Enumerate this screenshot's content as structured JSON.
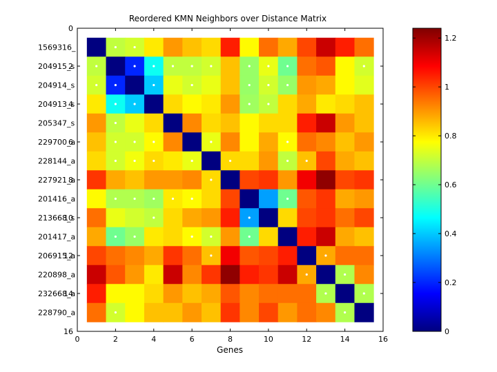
{
  "chart_data": {
    "type": "heatmap",
    "title": "Reordered KMN Neighbors over Distance Matrix",
    "xlabel": "Genes",
    "ylabel": "",
    "xlim": [
      0,
      16
    ],
    "ylim": [
      0,
      16
    ],
    "x_ticks": [
      0,
      2,
      4,
      6,
      8,
      10,
      12,
      14,
      16
    ],
    "y_ticks": [
      0,
      2,
      4,
      6,
      8,
      10,
      12,
      14,
      16
    ],
    "row_labels": [
      "1569316_",
      "204915_s",
      "204914_s",
      "204913_s",
      "205347_s",
      "229700_a",
      "228144_a",
      "227921_a",
      "201416_a",
      "213668_s",
      "201417_a",
      "206915_a",
      "220898_a",
      "232668_a",
      "228790_a"
    ],
    "colorbar": {
      "min": 0,
      "max": 1.24,
      "ticks": [
        0,
        0.2,
        0.4,
        0.6,
        0.8,
        1,
        1.2
      ],
      "colormap": "jet"
    },
    "values": [
      [
        0.0,
        0.7,
        0.72,
        0.8,
        0.9,
        0.85,
        0.82,
        1.05,
        0.78,
        0.95,
        0.88,
        1.0,
        1.15,
        1.05,
        0.95
      ],
      [
        0.7,
        0.0,
        0.2,
        0.48,
        0.7,
        0.7,
        0.72,
        0.85,
        0.65,
        0.75,
        0.6,
        0.95,
        0.98,
        0.78,
        0.72
      ],
      [
        0.72,
        0.2,
        0.0,
        0.4,
        0.75,
        0.72,
        0.75,
        0.85,
        0.65,
        0.72,
        0.65,
        0.9,
        0.88,
        0.78,
        0.74
      ],
      [
        0.8,
        0.48,
        0.4,
        0.0,
        0.82,
        0.78,
        0.8,
        0.9,
        0.66,
        0.7,
        0.82,
        0.88,
        0.8,
        0.82,
        0.85
      ],
      [
        0.9,
        0.7,
        0.75,
        0.82,
        0.0,
        0.92,
        0.82,
        0.85,
        0.78,
        0.82,
        0.82,
        1.05,
        1.15,
        0.9,
        0.85
      ],
      [
        0.85,
        0.72,
        0.72,
        0.78,
        0.92,
        0.0,
        0.75,
        0.92,
        0.78,
        0.88,
        0.78,
        0.95,
        0.92,
        0.85,
        0.9
      ],
      [
        0.82,
        0.72,
        0.76,
        0.82,
        0.8,
        0.75,
        0.0,
        0.82,
        0.82,
        0.9,
        0.7,
        0.85,
        1.0,
        0.88,
        0.85
      ],
      [
        1.02,
        0.88,
        0.85,
        0.9,
        0.9,
        0.92,
        0.82,
        0.0,
        1.0,
        1.02,
        0.9,
        1.1,
        1.22,
        1.0,
        1.02
      ],
      [
        0.78,
        0.68,
        0.68,
        0.66,
        0.8,
        0.78,
        0.82,
        1.0,
        0.0,
        0.35,
        0.6,
        0.98,
        1.02,
        0.88,
        0.9
      ],
      [
        0.95,
        0.75,
        0.72,
        0.7,
        0.82,
        0.88,
        0.9,
        1.05,
        0.35,
        0.0,
        0.82,
        1.0,
        1.02,
        0.95,
        1.0
      ],
      [
        0.88,
        0.6,
        0.65,
        0.8,
        0.82,
        0.78,
        0.72,
        0.9,
        0.6,
        0.82,
        0.0,
        1.05,
        1.15,
        0.88,
        0.85
      ],
      [
        1.0,
        0.95,
        0.92,
        0.88,
        1.02,
        0.95,
        0.85,
        1.1,
        0.98,
        1.0,
        1.05,
        0.0,
        0.88,
        0.95,
        0.95
      ],
      [
        1.15,
        0.98,
        0.9,
        0.8,
        1.15,
        0.92,
        1.02,
        1.22,
        1.05,
        1.02,
        1.15,
        0.88,
        0.0,
        0.68,
        0.92
      ],
      [
        1.05,
        0.78,
        0.78,
        0.82,
        0.9,
        0.85,
        0.88,
        0.98,
        0.92,
        0.95,
        0.95,
        0.95,
        0.68,
        0.0,
        0.68
      ],
      [
        0.95,
        0.72,
        0.78,
        0.85,
        0.85,
        0.9,
        0.85,
        1.02,
        0.92,
        1.0,
        0.9,
        0.95,
        0.92,
        0.68,
        0.0
      ]
    ],
    "neighbor_markers": [
      [
        1,
        2
      ],
      [
        1,
        3
      ],
      [
        2,
        1
      ],
      [
        2,
        3
      ],
      [
        2,
        4
      ],
      [
        2,
        5
      ],
      [
        2,
        6
      ],
      [
        2,
        7
      ],
      [
        2,
        9
      ],
      [
        2,
        10
      ],
      [
        2,
        11
      ],
      [
        2,
        15
      ],
      [
        3,
        1
      ],
      [
        3,
        2
      ],
      [
        3,
        4
      ],
      [
        3,
        6
      ],
      [
        3,
        9
      ],
      [
        3,
        10
      ],
      [
        3,
        11
      ],
      [
        4,
        2
      ],
      [
        4,
        3
      ],
      [
        4,
        9
      ],
      [
        4,
        10
      ],
      [
        5,
        2
      ],
      [
        6,
        2
      ],
      [
        6,
        3
      ],
      [
        6,
        4
      ],
      [
        6,
        7
      ],
      [
        6,
        11
      ],
      [
        7,
        2
      ],
      [
        7,
        3
      ],
      [
        7,
        4
      ],
      [
        7,
        6
      ],
      [
        7,
        8
      ],
      [
        7,
        11
      ],
      [
        7,
        12
      ],
      [
        8,
        7
      ],
      [
        9,
        2
      ],
      [
        9,
        3
      ],
      [
        9,
        4
      ],
      [
        9,
        5
      ],
      [
        9,
        6
      ],
      [
        9,
        11
      ],
      [
        10,
        4
      ],
      [
        10,
        9
      ],
      [
        11,
        2
      ],
      [
        11,
        3
      ],
      [
        11,
        6
      ],
      [
        11,
        7
      ],
      [
        11,
        9
      ],
      [
        12,
        7
      ],
      [
        12,
        13
      ],
      [
        13,
        12
      ],
      [
        13,
        14
      ],
      [
        14,
        13
      ],
      [
        14,
        15
      ],
      [
        15,
        2
      ],
      [
        15,
        14
      ]
    ]
  }
}
